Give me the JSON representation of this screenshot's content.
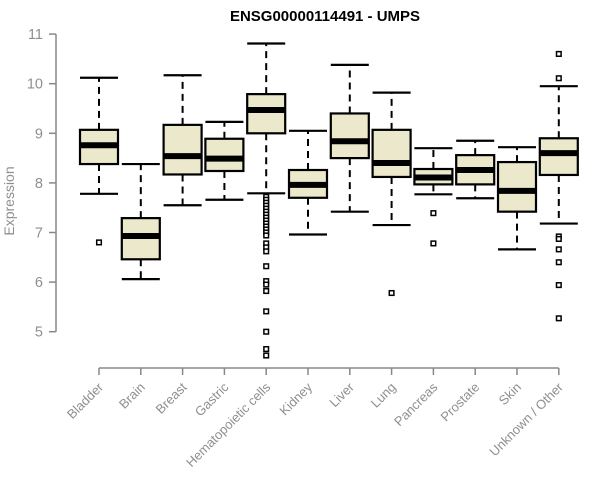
{
  "title": "ENSG00000114491 - UMPS",
  "chart_data": {
    "type": "boxplot",
    "title": "ENSG00000114491 - UMPS",
    "xlabel": "",
    "ylabel": "Expression",
    "y_ticks": [
      5,
      6,
      7,
      8,
      9,
      10,
      11
    ],
    "ylim": [
      4.4,
      11.0
    ],
    "grid": false,
    "legend": "none",
    "categories": [
      "Bladder",
      "Brain",
      "Breast",
      "Gastric",
      "Hematopoietic cells",
      "Kidney",
      "Liver",
      "Lung",
      "Pancreas",
      "Prostate",
      "Skin",
      "Unknown / Other"
    ],
    "series": [
      {
        "name": "Bladder",
        "whisker_low": 7.78,
        "q1": 8.38,
        "median": 8.76,
        "q3": 9.07,
        "whisker_high": 10.12,
        "outliers": [
          6.8
        ]
      },
      {
        "name": "Brain",
        "whisker_low": 6.06,
        "q1": 6.46,
        "median": 6.93,
        "q3": 7.29,
        "whisker_high": 8.38,
        "outliers": []
      },
      {
        "name": "Breast",
        "whisker_low": 7.55,
        "q1": 8.17,
        "median": 8.54,
        "q3": 9.17,
        "whisker_high": 10.17,
        "outliers": []
      },
      {
        "name": "Gastric",
        "whisker_low": 7.66,
        "q1": 8.24,
        "median": 8.49,
        "q3": 8.89,
        "whisker_high": 9.23,
        "outliers": []
      },
      {
        "name": "Hematopoietic cells",
        "whisker_low": 7.79,
        "q1": 9.0,
        "median": 9.47,
        "q3": 9.79,
        "whisker_high": 10.81,
        "outliers": [
          7.72,
          7.66,
          7.6,
          7.54,
          7.48,
          7.42,
          7.36,
          7.3,
          7.24,
          7.18,
          7.12,
          7.06,
          7.0,
          6.94,
          6.78,
          6.7,
          6.62,
          6.32,
          6.02,
          5.95,
          5.82,
          5.41,
          5.0,
          4.65,
          4.52
        ]
      },
      {
        "name": "Kidney",
        "whisker_low": 6.96,
        "q1": 7.7,
        "median": 7.96,
        "q3": 8.26,
        "whisker_high": 9.05,
        "outliers": []
      },
      {
        "name": "Liver",
        "whisker_low": 7.42,
        "q1": 8.5,
        "median": 8.84,
        "q3": 9.4,
        "whisker_high": 10.38,
        "outliers": []
      },
      {
        "name": "Lung",
        "whisker_low": 7.15,
        "q1": 8.12,
        "median": 8.4,
        "q3": 9.07,
        "whisker_high": 9.82,
        "outliers": [
          5.78
        ]
      },
      {
        "name": "Pancreas",
        "whisker_low": 7.77,
        "q1": 7.97,
        "median": 8.11,
        "q3": 8.28,
        "whisker_high": 8.7,
        "outliers": [
          7.39,
          6.78
        ]
      },
      {
        "name": "Prostate",
        "whisker_low": 7.69,
        "q1": 7.97,
        "median": 8.26,
        "q3": 8.56,
        "whisker_high": 8.85,
        "outliers": []
      },
      {
        "name": "Skin",
        "whisker_low": 6.66,
        "q1": 7.42,
        "median": 7.84,
        "q3": 8.42,
        "whisker_high": 8.72,
        "outliers": []
      },
      {
        "name": "Unknown / Other",
        "whisker_low": 7.18,
        "q1": 8.16,
        "median": 8.6,
        "q3": 8.9,
        "whisker_high": 9.95,
        "outliers": [
          10.6,
          10.11,
          6.92,
          6.87,
          6.66,
          6.4,
          5.94,
          5.27
        ]
      }
    ],
    "colors": {
      "box_fill": "#ece8cb",
      "box_border": "#000000",
      "median": "#000000",
      "whisker": "#000000",
      "outlier_fill": "#ffffff",
      "outlier_border": "#000000",
      "axis": "#888888",
      "tick_text": "#8f8f8f",
      "title_text": "#000000",
      "background": "#ffffff"
    }
  }
}
